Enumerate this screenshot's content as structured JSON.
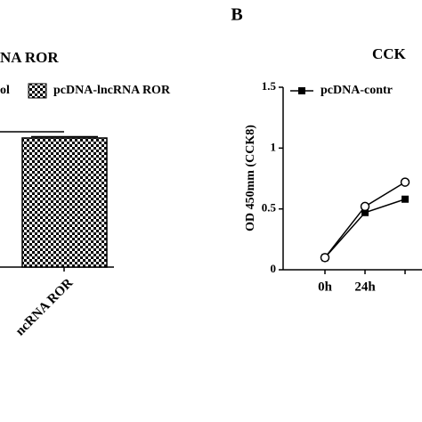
{
  "panel_label": "B",
  "chart_data": [
    {
      "type": "bar",
      "title": "NA ROR",
      "legend": [
        "ol",
        "pcDNA-lncRNA ROR"
      ],
      "categories": [
        "ncRNA ROR"
      ],
      "values": [
        1
      ],
      "errors": [
        0.01
      ],
      "ylim": [
        0,
        1.5
      ],
      "color": "#000000"
    },
    {
      "type": "line",
      "title": "CCK",
      "y_label": "OD 450mm (CCK8)",
      "categories": [
        "0h",
        "24h",
        null
      ],
      "series": [
        {
          "name": "pcDNA-contr",
          "color": "#000000",
          "marker": "square",
          "values": [
            0.1,
            0.47,
            0.58
          ]
        },
        {
          "color": "#000000",
          "marker": "circle",
          "values": [
            0.1,
            0.52,
            0.72
          ]
        }
      ],
      "ylim": [
        0,
        1.5
      ],
      "yticks": [
        0.0,
        0.5,
        1.0,
        1.5
      ]
    }
  ]
}
